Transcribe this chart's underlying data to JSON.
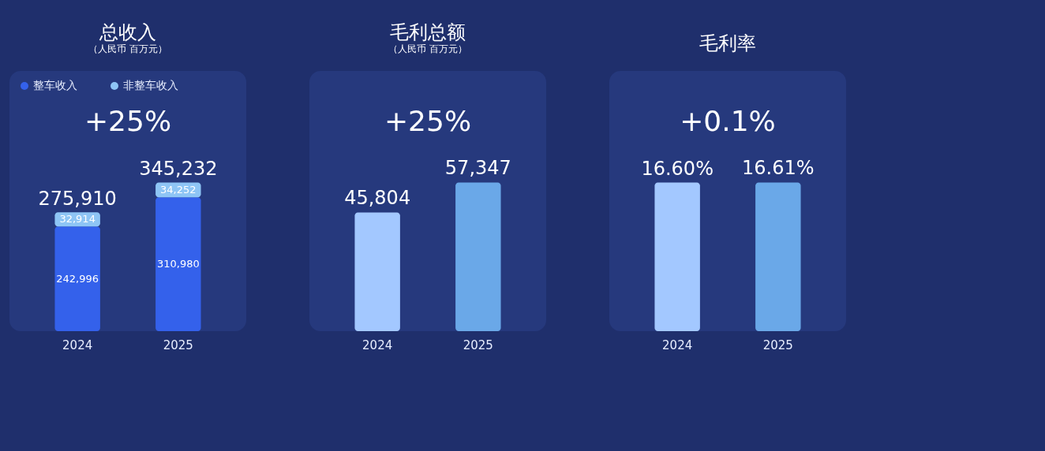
{
  "chart_data": [
    {
      "type": "bar",
      "stacked": true,
      "title": "总收入",
      "subtitle": "（人民币 百万元）",
      "categories": [
        "2024",
        "2025"
      ],
      "series": [
        {
          "name": "整车收入",
          "color": "#3461eb",
          "values": [
            242996,
            310980
          ],
          "value_labels": [
            "242,996",
            "310,980"
          ]
        },
        {
          "name": "非整车收入",
          "color": "#8ec5f5",
          "values": [
            32914,
            34252
          ],
          "value_labels": [
            "32,914",
            "34,252"
          ]
        }
      ],
      "totals": [
        "275,910",
        "345,232"
      ],
      "legend": "top left",
      "annotations": [
        "+25%"
      ]
    },
    {
      "type": "bar",
      "title": "毛利总额",
      "subtitle": "（人民币 百万元）",
      "categories": [
        "2024",
        "2025"
      ],
      "values": [
        45804,
        57347
      ],
      "colors": [
        "#a3c8ff",
        "#6aa8e8"
      ],
      "value_labels": [
        "45,804",
        "57,347"
      ],
      "annotations": [
        "+25%"
      ]
    },
    {
      "type": "bar",
      "title": "毛利率",
      "categories": [
        "2024",
        "2025"
      ],
      "values": [
        16.6,
        16.61
      ],
      "colors": [
        "#a3c8ff",
        "#6aa8e8"
      ],
      "value_labels": [
        "16.60%",
        "16.61%"
      ],
      "annotations": [
        "+0.1%"
      ]
    }
  ]
}
